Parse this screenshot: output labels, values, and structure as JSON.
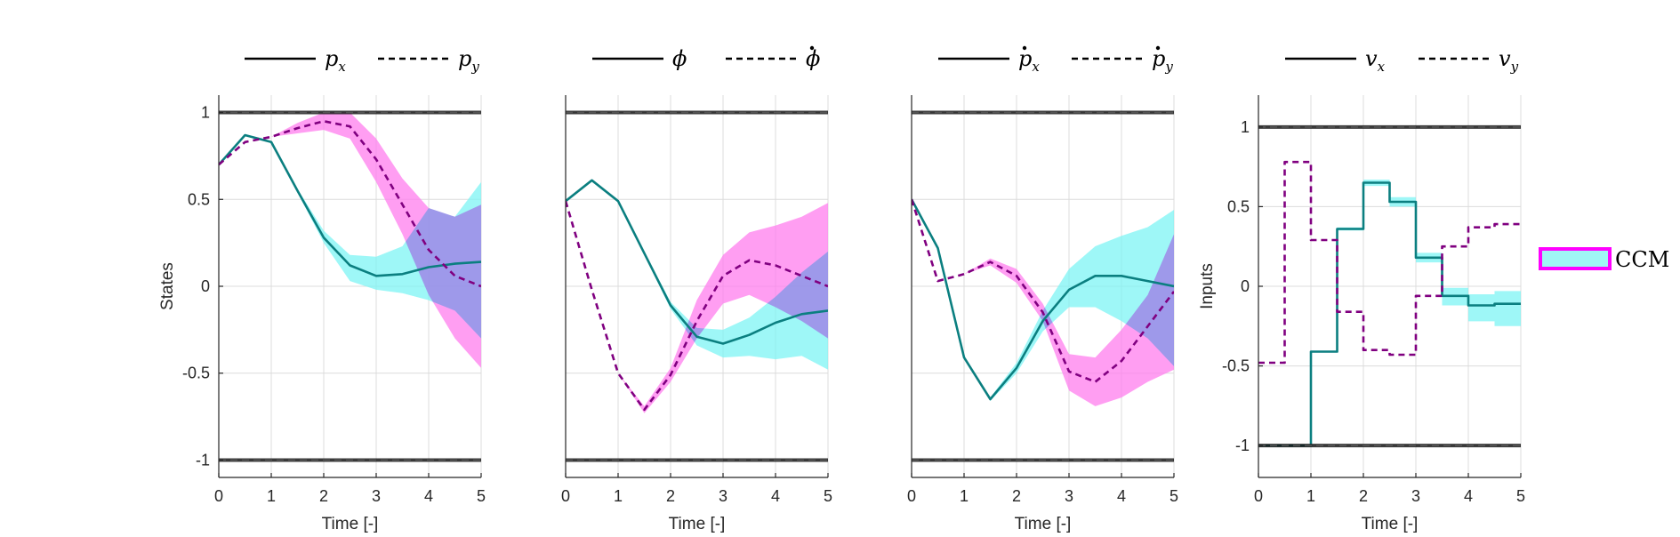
{
  "colors": {
    "series_solid": "#0b7f80",
    "series_dashed": "#800080",
    "band_solid": "#7ef4f4",
    "band_dashed": "#ff7dee",
    "band_overlap": "#b3a3f6",
    "bounds": "#1a1a1a",
    "ccm_border": "#ff00ff",
    "ccm_fill": "#9ff5f5"
  },
  "legend": {
    "ccm_label": "CCM"
  },
  "chart_data": [
    {
      "type": "line",
      "ylabel": "States",
      "xlabel": "Time [-]",
      "xlim": [
        0,
        5
      ],
      "ylim": [
        -1.1,
        1.1
      ],
      "xticks": [
        0,
        1,
        2,
        3,
        4,
        5
      ],
      "yticks": [
        -1,
        -0.5,
        0,
        0.5,
        1
      ],
      "ytick_labels": [
        "-1",
        "-0.5",
        "0",
        "0.5",
        "1"
      ],
      "bounds": [
        1,
        -1
      ],
      "grid": true,
      "legend_position": "top",
      "legend": [
        {
          "symbol": "p",
          "sub": "x",
          "dot": false,
          "style": "solid"
        },
        {
          "symbol": "p",
          "sub": "y",
          "dot": false,
          "style": "dashed"
        }
      ],
      "x": [
        0,
        0.5,
        1,
        1.5,
        2,
        2.5,
        3,
        3.5,
        4,
        4.5,
        5
      ],
      "series": [
        {
          "style": "solid",
          "values": [
            0.7,
            0.87,
            0.83,
            0.55,
            0.28,
            0.12,
            0.06,
            0.07,
            0.11,
            0.13,
            0.14
          ],
          "band_upper": [
            0.7,
            0.87,
            0.83,
            0.56,
            0.32,
            0.18,
            0.17,
            0.23,
            0.45,
            0.4,
            0.6
          ],
          "band_lower": [
            0.7,
            0.87,
            0.83,
            0.54,
            0.25,
            0.03,
            -0.02,
            -0.04,
            -0.08,
            -0.14,
            -0.3
          ]
        },
        {
          "style": "dashed",
          "values": [
            0.7,
            0.83,
            0.86,
            0.91,
            0.95,
            0.92,
            0.73,
            0.47,
            0.21,
            0.06,
            0.0
          ],
          "band_upper": [
            0.7,
            0.83,
            0.86,
            0.94,
            1.0,
            1.0,
            0.85,
            0.62,
            0.45,
            0.4,
            0.47
          ],
          "band_lower": [
            0.7,
            0.83,
            0.86,
            0.88,
            0.9,
            0.85,
            0.6,
            0.3,
            -0.05,
            -0.3,
            -0.47
          ]
        }
      ]
    },
    {
      "type": "line",
      "ylabel": "",
      "xlabel": "Time [-]",
      "xlim": [
        0,
        5
      ],
      "ylim": [
        -1.1,
        1.1
      ],
      "xticks": [
        0,
        1,
        2,
        3,
        4,
        5
      ],
      "yticks": [],
      "ytick_labels": [],
      "bounds": [
        1,
        -1
      ],
      "grid": true,
      "legend_position": "top",
      "legend": [
        {
          "symbol": "ϕ",
          "sub": "",
          "dot": false,
          "style": "solid"
        },
        {
          "symbol": "ϕ",
          "sub": "",
          "dot": true,
          "style": "dashed"
        }
      ],
      "x": [
        0,
        0.5,
        1,
        1.5,
        2,
        2.5,
        3,
        3.5,
        4,
        4.5,
        5
      ],
      "series": [
        {
          "style": "solid",
          "values": [
            0.49,
            0.61,
            0.49,
            0.19,
            -0.11,
            -0.29,
            -0.33,
            -0.28,
            -0.21,
            -0.16,
            -0.14
          ],
          "band_upper": [
            0.49,
            0.61,
            0.49,
            0.2,
            -0.09,
            -0.24,
            -0.25,
            -0.18,
            -0.06,
            0.08,
            0.2
          ],
          "band_lower": [
            0.49,
            0.61,
            0.49,
            0.18,
            -0.13,
            -0.34,
            -0.41,
            -0.4,
            -0.42,
            -0.4,
            -0.48
          ]
        },
        {
          "style": "dashed",
          "values": [
            0.49,
            -0.02,
            -0.5,
            -0.71,
            -0.51,
            -0.2,
            0.06,
            0.15,
            0.12,
            0.06,
            0.0
          ],
          "band_upper": [
            0.49,
            -0.02,
            -0.5,
            -0.69,
            -0.47,
            -0.08,
            0.18,
            0.31,
            0.35,
            0.4,
            0.48
          ],
          "band_lower": [
            0.49,
            -0.02,
            -0.5,
            -0.73,
            -0.55,
            -0.3,
            -0.1,
            -0.05,
            -0.12,
            -0.2,
            -0.3
          ]
        }
      ]
    },
    {
      "type": "line",
      "ylabel": "",
      "xlabel": "Time [-]",
      "xlim": [
        0,
        5
      ],
      "ylim": [
        -1.1,
        1.1
      ],
      "xticks": [
        0,
        1,
        2,
        3,
        4,
        5
      ],
      "yticks": [],
      "ytick_labels": [],
      "bounds": [
        1,
        -1
      ],
      "grid": true,
      "legend_position": "top",
      "legend": [
        {
          "symbol": "p",
          "sub": "x",
          "dot": true,
          "style": "solid"
        },
        {
          "symbol": "p",
          "sub": "y",
          "dot": true,
          "style": "dashed"
        }
      ],
      "x": [
        0,
        0.5,
        1,
        1.5,
        2,
        2.5,
        3,
        3.5,
        4,
        4.5,
        5
      ],
      "series": [
        {
          "style": "solid",
          "values": [
            0.5,
            0.22,
            -0.41,
            -0.65,
            -0.47,
            -0.2,
            -0.02,
            0.06,
            0.06,
            0.03,
            0.0
          ],
          "band_upper": [
            0.5,
            0.22,
            -0.41,
            -0.64,
            -0.44,
            -0.14,
            0.1,
            0.23,
            0.29,
            0.34,
            0.44
          ],
          "band_lower": [
            0.5,
            0.22,
            -0.41,
            -0.66,
            -0.5,
            -0.26,
            -0.12,
            -0.12,
            -0.2,
            -0.3,
            -0.46
          ]
        },
        {
          "style": "dashed",
          "values": [
            0.5,
            0.03,
            0.07,
            0.14,
            0.06,
            -0.15,
            -0.49,
            -0.55,
            -0.43,
            -0.23,
            -0.03
          ],
          "band_upper": [
            0.5,
            0.03,
            0.07,
            0.16,
            0.1,
            -0.1,
            -0.39,
            -0.41,
            -0.25,
            -0.05,
            0.3
          ],
          "band_lower": [
            0.5,
            0.03,
            0.07,
            0.12,
            0.02,
            -0.2,
            -0.6,
            -0.69,
            -0.64,
            -0.55,
            -0.48
          ]
        }
      ]
    },
    {
      "type": "line",
      "step": true,
      "ylabel": "Inputs",
      "xlabel": "Time [-]",
      "xlim": [
        0,
        5
      ],
      "ylim": [
        -1.2,
        1.2
      ],
      "xticks": [
        0,
        1,
        2,
        3,
        4,
        5
      ],
      "yticks": [
        -1,
        -0.5,
        0,
        0.5,
        1
      ],
      "ytick_labels": [
        "-1",
        "-0.5",
        "0",
        "0.5",
        "1"
      ],
      "bounds": [
        1,
        -1
      ],
      "grid": true,
      "legend_position": "top",
      "legend": [
        {
          "symbol": "v",
          "sub": "x",
          "dot": false,
          "style": "solid"
        },
        {
          "symbol": "v",
          "sub": "y",
          "dot": false,
          "style": "dashed"
        }
      ],
      "x": [
        0,
        0.5,
        1,
        1.5,
        2,
        2.5,
        3,
        3.5,
        4,
        4.5,
        5
      ],
      "series": [
        {
          "style": "solid",
          "values": [
            -1.0,
            -1.0,
            -0.41,
            0.36,
            0.65,
            0.53,
            0.18,
            -0.06,
            -0.12,
            -0.11,
            -0.11
          ],
          "band_upper": [
            -1.0,
            -1.0,
            -0.41,
            0.37,
            0.67,
            0.56,
            0.21,
            -0.01,
            -0.05,
            -0.03,
            -0.03
          ],
          "band_lower": [
            -1.0,
            -1.0,
            -0.41,
            0.35,
            0.63,
            0.5,
            0.15,
            -0.12,
            -0.22,
            -0.25,
            -0.25
          ]
        },
        {
          "style": "dashed",
          "values": [
            -0.48,
            0.78,
            0.29,
            -0.16,
            -0.4,
            -0.43,
            -0.06,
            0.25,
            0.37,
            0.39,
            0.39
          ],
          "band_upper": null,
          "band_lower": null
        }
      ]
    }
  ]
}
